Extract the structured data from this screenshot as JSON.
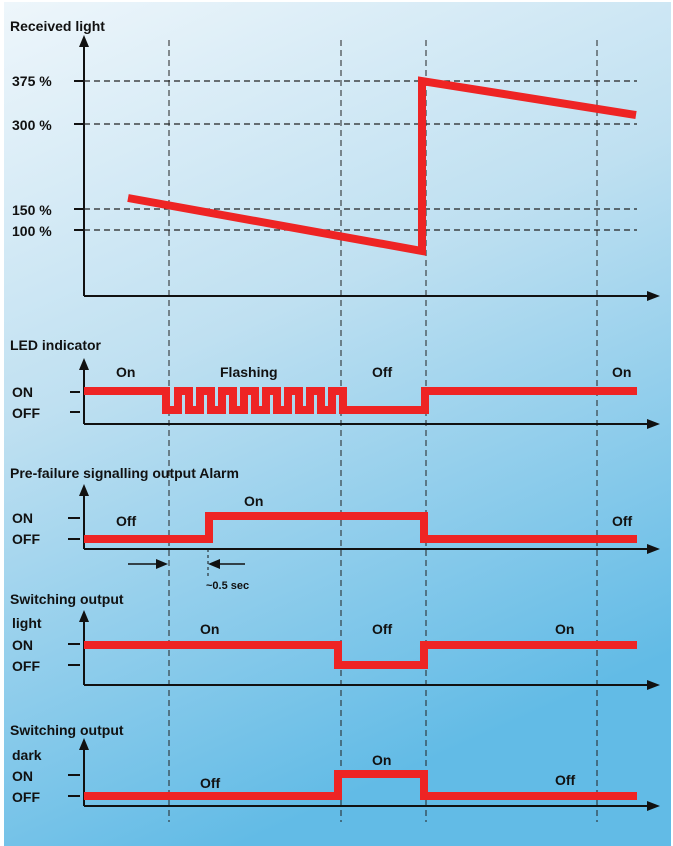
{
  "colors": {
    "signal": "#ee2424",
    "background_top": "#eaf4fa",
    "background_bottom": "#67bde6",
    "ink": "#111111"
  },
  "received_light": {
    "title": "Received light",
    "levels": [
      {
        "label": "375 %",
        "value": 375
      },
      {
        "label": "300 %",
        "value": 300
      },
      {
        "label": "150 %",
        "value": 150
      },
      {
        "label": "100 %",
        "value": 100
      }
    ]
  },
  "led_indicator": {
    "title": "LED indicator",
    "on_label": "ON",
    "off_label": "OFF",
    "phases": {
      "on1": "On",
      "flashing": "Flashing",
      "off": "Off",
      "on2": "On"
    }
  },
  "pre_failure": {
    "title": "Pre-failure signalling output Alarm",
    "on_label": "ON",
    "off_label": "OFF",
    "phases": {
      "off1": "Off",
      "on": "On",
      "off2": "Off"
    },
    "delay_label": "~0.5 sec"
  },
  "switching_light": {
    "title": "Switching output",
    "subtitle": "light",
    "on_label": "ON",
    "off_label": "OFF",
    "phases": {
      "on1": "On",
      "off": "Off",
      "on2": "On"
    }
  },
  "switching_dark": {
    "title": "Switching output",
    "subtitle": "dark",
    "on_label": "ON",
    "off_label": "OFF",
    "phases": {
      "off1": "Off",
      "on": "On",
      "off2": "Off"
    }
  }
}
